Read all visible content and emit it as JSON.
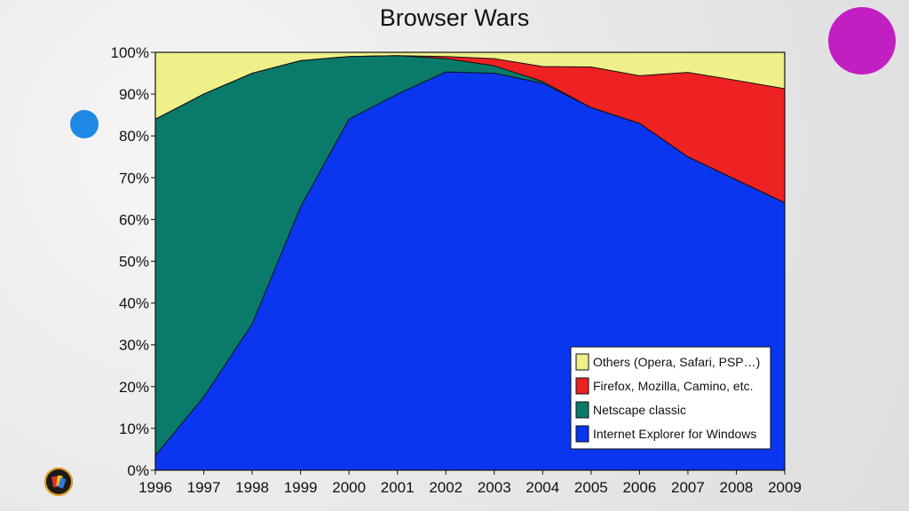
{
  "colors": {
    "background": "#ececec",
    "blue_dot": "#1e88e5",
    "magenta_dot": "#c21fc2"
  },
  "icons": {
    "app_logo": "app-logo-icon"
  },
  "chart_data": {
    "type": "area",
    "stacked": true,
    "title": "Browser Wars",
    "xlabel": "",
    "ylabel": "",
    "x": [
      1996,
      1997,
      1998,
      1999,
      2000,
      2001,
      2002,
      2003,
      2004,
      2005,
      2006,
      2007,
      2008,
      2009
    ],
    "xlim": [
      1996,
      2009
    ],
    "ylim": [
      0,
      100
    ],
    "ytick_format": "percent",
    "yticks": [
      0,
      10,
      20,
      30,
      40,
      50,
      60,
      70,
      80,
      90,
      100
    ],
    "grid": false,
    "legend_position": "bottom-right",
    "series": [
      {
        "name": "Internet Explorer for Windows",
        "color": "#0a36f0",
        "values": [
          3.5,
          17.5,
          35,
          63,
          84,
          90,
          95.3,
          95,
          92.6,
          86.8,
          83,
          75,
          69.5,
          64
        ]
      },
      {
        "name": "Netscape classic",
        "color": "#0a7a6a",
        "values": [
          80.5,
          72.5,
          60,
          35,
          15,
          9.2,
          3.2,
          1.8,
          0.4,
          0,
          0,
          0,
          0,
          0
        ]
      },
      {
        "name": "Firefox, Mozilla, Camino, etc.",
        "color": "#ee2222",
        "values": [
          0,
          0,
          0,
          0,
          0,
          0,
          0.5,
          1.7,
          3.6,
          9.7,
          11.4,
          20.2,
          23.8,
          27.3
        ]
      },
      {
        "name": "Others (Opera, Safari, PSP…)",
        "color": "#f0f08a",
        "values": [
          16,
          10,
          5,
          2,
          1,
          0.8,
          1,
          1.5,
          3.4,
          3.5,
          5.6,
          4.8,
          6.7,
          8.7
        ]
      }
    ],
    "legend_order": [
      "Others (Opera, Safari, PSP…)",
      "Firefox, Mozilla, Camino, etc.",
      "Netscape classic",
      "Internet Explorer for Windows"
    ]
  }
}
